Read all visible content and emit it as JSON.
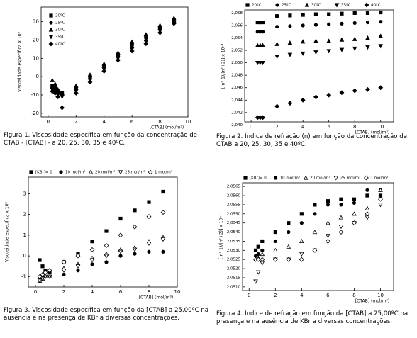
{
  "chart_data": [
    {
      "type": "scatter",
      "legend": "upper left",
      "y_label": "Viscosidade especifica x 10³",
      "x_label": "[CTAB] (mol/m³)",
      "caption": "Figura 1. Viscosidade específica em função da concentração de CTAB - [CTAB] - a 20, 25, 30, 35 e 40ºC.",
      "x": [
        0.3,
        0.5,
        0.7,
        1,
        2,
        3,
        4,
        5,
        6,
        7,
        8,
        9
      ],
      "xlim": [
        -0.5,
        10
      ],
      "xticks": [
        0,
        2,
        4,
        6,
        8,
        10
      ],
      "ylim": [
        -22,
        38
      ],
      "yticks": [
        -20,
        -10,
        0,
        10,
        20,
        30
      ],
      "series": [
        {
          "name": "20ºC",
          "color": "#000000",
          "marker": "square",
          "values": [
            -5,
            -6,
            -8,
            -9,
            -6,
            0,
            6,
            12,
            18,
            22,
            27,
            31
          ]
        },
        {
          "name": "25ºC",
          "color": "#000000",
          "marker": "circle",
          "values": [
            -6,
            -7,
            -9,
            -10,
            -7,
            -1,
            5,
            11,
            17,
            21,
            26,
            30
          ]
        },
        {
          "name": "30ºC",
          "color": "#000000",
          "marker": "triangle-up",
          "values": [
            -2,
            -4,
            -7,
            -9,
            -5,
            1,
            7,
            13,
            19,
            23,
            28,
            32
          ]
        },
        {
          "name": "35ºC",
          "color": "#000000",
          "marker": "triangle-down",
          "values": [
            -7,
            -8,
            -10,
            -11,
            -8,
            -2,
            4,
            10,
            15,
            19,
            25,
            29
          ]
        },
        {
          "name": "40ºC",
          "color": "#000000",
          "marker": "diamond",
          "values": [
            -8,
            -9,
            -11,
            -17,
            -9,
            -3,
            3,
            9,
            14,
            18,
            24,
            29
          ]
        }
      ]
    },
    {
      "type": "scatter",
      "legend": "top",
      "y_label": "[(n²-1)/(n²+2)] x 10⁻¹",
      "x_label": "[CTAB] (mol/m³)",
      "caption": "Figura 2. Índice de refração (n) em função da concentração de CTAB a 20, 25, 30, 35 e 40ºC.",
      "x": [
        0.5,
        0.7,
        0.9,
        2,
        3,
        4,
        5,
        6,
        7,
        8,
        9,
        10
      ],
      "xlim": [
        -0.5,
        11
      ],
      "xticks": [
        0,
        2,
        4,
        6,
        8,
        10
      ],
      "ylim": [
        2.0405,
        2.0585
      ],
      "yticks": [
        {
          "value": 2.04,
          "label": "2,040"
        },
        {
          "value": 2.042,
          "label": "2,042"
        },
        {
          "value": 2.044,
          "label": "2,044"
        },
        {
          "value": 2.046,
          "label": "2,046"
        },
        {
          "value": 2.048,
          "label": "2,048"
        },
        {
          "value": 2.05,
          "label": "2,050"
        },
        {
          "value": 2.052,
          "label": "2,052"
        },
        {
          "value": 2.054,
          "label": "2,054"
        },
        {
          "value": 2.056,
          "label": "2,056"
        },
        {
          "value": 2.058,
          "label": "2,058"
        }
      ],
      "series": [
        {
          "name": "20ºC",
          "color": "#000000",
          "marker": "square",
          "values": [
            2.0565,
            2.0565,
            2.0565,
            2.0575,
            2.0576,
            2.0577,
            2.0578,
            2.0578,
            2.0579,
            2.058,
            2.058,
            2.0581
          ]
        },
        {
          "name": "25ºC",
          "color": "#000000",
          "marker": "circle",
          "values": [
            2.055,
            2.055,
            2.055,
            2.0558,
            2.0559,
            2.056,
            2.0561,
            2.0562,
            2.0563,
            2.0564,
            2.0565,
            2.0566
          ]
        },
        {
          "name": "30ºC",
          "color": "#000000",
          "marker": "triangle-up",
          "values": [
            2.0528,
            2.0528,
            2.0528,
            2.053,
            2.0532,
            2.0534,
            2.0535,
            2.0535,
            2.0537,
            2.0538,
            2.054,
            2.0543
          ]
        },
        {
          "name": "35ºC",
          "color": "#000000",
          "marker": "triangle-down",
          "values": [
            2.05,
            2.05,
            2.05,
            2.051,
            2.0513,
            2.0515,
            2.0517,
            2.0519,
            2.0521,
            2.0523,
            2.0525,
            2.0527
          ]
        },
        {
          "name": "40ºC",
          "color": "#000000",
          "marker": "diamond",
          "values": [
            2.0412,
            2.0412,
            2.0412,
            2.043,
            2.0435,
            2.044,
            2.0445,
            2.0448,
            2.0452,
            2.0455,
            2.0457,
            2.046
          ]
        }
      ]
    },
    {
      "type": "scatter",
      "legend": "top",
      "y_label": "Viscosidade específica x 10²",
      "x_label": "[CTAB] (mol/m³)",
      "caption": "Figura 3. Viscosidade específica em função da [CTAB] a 25,00ºC na ausência e na presença de KBr a diversas concentrações.",
      "x": [
        0.3,
        0.5,
        0.7,
        1,
        2,
        3,
        4,
        5,
        6,
        7,
        8,
        9
      ],
      "xlim": [
        -0.5,
        10
      ],
      "xticks": [
        0,
        2,
        4,
        6,
        8,
        10
      ],
      "ylim": [
        -1.5,
        3.8
      ],
      "yticks": [
        -1,
        0,
        1,
        2,
        3
      ],
      "series": [
        {
          "name": "[KBr]= 0",
          "color": "#000000",
          "marker": "square",
          "values": [
            -0.2,
            -0.5,
            -0.7,
            -0.8,
            -0.3,
            0.1,
            0.7,
            1.2,
            1.8,
            2.2,
            2.6,
            3.1
          ]
        },
        {
          "name": "10 mol/m³",
          "color": "#000000",
          "marker": "circle",
          "values": [
            -1.1,
            -1,
            -1,
            -1,
            -0.9,
            -0.7,
            -0.4,
            -0.3,
            0,
            0.1,
            0.2,
            0.2
          ]
        },
        {
          "name": "20 mol/m³",
          "color": "#000000",
          "marker": "triangle-up-open",
          "values": [
            -1.2,
            -1.1,
            -1,
            -1,
            -0.6,
            -0.4,
            -0.1,
            0.1,
            0.3,
            0.4,
            0.7,
            0.9
          ]
        },
        {
          "name": "25 mol/m³",
          "color": "#000000",
          "marker": "triangle-down-open",
          "values": [
            -1.2,
            -1.1,
            -1,
            -1,
            -0.7,
            -0.5,
            -0.2,
            0,
            0.2,
            0.3,
            0.6,
            0.8
          ]
        },
        {
          "name": "1 mol/m³",
          "color": "#000000",
          "marker": "diamond-open",
          "values": [
            -1,
            -0.9,
            -0.8,
            -0.7,
            -0.3,
            0,
            0.3,
            0.5,
            1,
            1.4,
            1.9,
            2.1
          ]
        }
      ]
    },
    {
      "type": "scatter",
      "legend": "top",
      "y_label": "[(n²-1)/(n²+2)] x 10⁻¹",
      "x_label": "[CTAB] (mol/m³)",
      "caption": "Figura 4. Índice de refração em função da [CTAB] a 25,00ºC na presença e na ausência de KBr a diversas concentrações.",
      "x": [
        0.5,
        0.7,
        1,
        2,
        3,
        4,
        5,
        6,
        7,
        8,
        9,
        10
      ],
      "xlim": [
        -0.5,
        11
      ],
      "xticks": [
        0,
        2,
        4,
        6,
        8,
        10
      ],
      "ylim": [
        2.0508,
        2.0567
      ],
      "yticks": [
        {
          "value": 2.051,
          "label": "2,0510"
        },
        {
          "value": 2.0515,
          "label": "2,0515"
        },
        {
          "value": 2.052,
          "label": "2,0520"
        },
        {
          "value": 2.0525,
          "label": "2,0525"
        },
        {
          "value": 2.053,
          "label": "2,0530"
        },
        {
          "value": 2.0535,
          "label": "2,0535"
        },
        {
          "value": 2.054,
          "label": "2,0540"
        },
        {
          "value": 2.0545,
          "label": "2,0545"
        },
        {
          "value": 2.055,
          "label": "2,0550"
        },
        {
          "value": 2.0555,
          "label": "2,0555"
        },
        {
          "value": 2.056,
          "label": "2,0560"
        },
        {
          "value": 2.0565,
          "label": "2,0565"
        }
      ],
      "series": [
        {
          "name": "[KBr]= 0",
          "color": "#000000",
          "marker": "square",
          "values": [
            2.053,
            2.0532,
            2.0535,
            2.054,
            2.0545,
            2.055,
            2.0555,
            2.0557,
            2.0558,
            2.0558,
            2.056,
            2.056
          ]
        },
        {
          "name": "10 mol/m³",
          "color": "#000000",
          "marker": "circle",
          "values": [
            2.0527,
            2.0528,
            2.053,
            2.0535,
            2.054,
            2.0545,
            2.055,
            2.0555,
            2.0555,
            2.0556,
            2.0563,
            2.0563
          ]
        },
        {
          "name": "20 mol/m³",
          "color": "#000000",
          "marker": "triangle-up-open",
          "values": [
            2.0525,
            2.0526,
            2.0528,
            2.053,
            2.0532,
            2.0535,
            2.054,
            2.0545,
            2.0548,
            2.055,
            2.0553,
            2.0563
          ]
        },
        {
          "name": "25 mol/m³",
          "color": "#000000",
          "marker": "triangle-down-open",
          "values": [
            2.0513,
            2.0518,
            2.0523,
            2.0525,
            2.0525,
            2.0528,
            2.053,
            2.0538,
            2.0543,
            2.0545,
            2.0548,
            2.0555
          ]
        },
        {
          "name": "1 mol/m³",
          "color": "#000000",
          "marker": "diamond-open",
          "values": [
            2.0525,
            2.0525,
            2.0525,
            2.0525,
            2.0525,
            2.0525,
            2.053,
            2.0535,
            2.054,
            2.0545,
            2.055,
            2.0558
          ]
        }
      ]
    }
  ]
}
